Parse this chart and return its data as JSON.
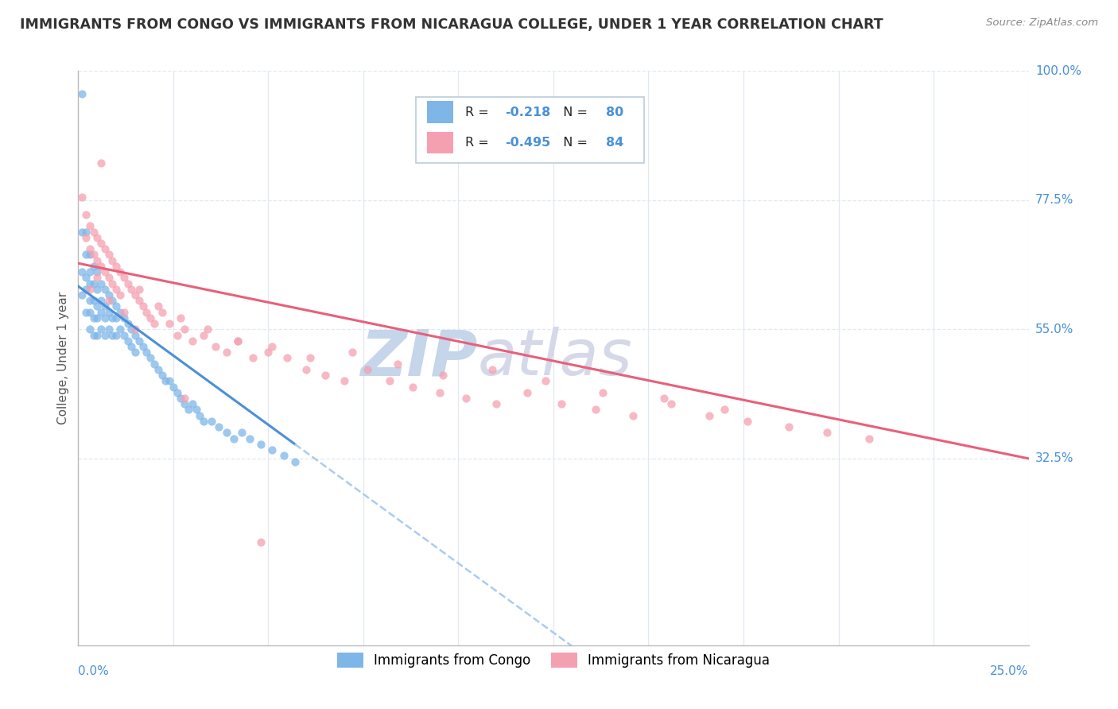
{
  "title": "IMMIGRANTS FROM CONGO VS IMMIGRANTS FROM NICARAGUA COLLEGE, UNDER 1 YEAR CORRELATION CHART",
  "source": "Source: ZipAtlas.com",
  "xmin": 0.0,
  "xmax": 0.25,
  "ymin": 0.0,
  "ymax": 1.0,
  "congo_color": "#7EB6E8",
  "nicaragua_color": "#F5A0B0",
  "trendline_congo_color": "#4A90D9",
  "trendline_nicaragua_color": "#E8607A",
  "trendline_extension_color": "#AACCEE",
  "legend_congo_r": "-0.218",
  "legend_congo_n": "80",
  "legend_nicaragua_r": "-0.495",
  "legend_nicaragua_n": "84",
  "legend_label_congo": "Immigrants from Congo",
  "legend_label_nicaragua": "Immigrants from Nicaragua",
  "watermark_zip": "ZIP",
  "watermark_atlas": "atlas",
  "watermark_color_zip": "#C8D8EE",
  "watermark_color_atlas": "#C8D8EE",
  "background_color": "#FFFFFF",
  "grid_color": "#E0E8F4",
  "right_axis_color": "#4A90D9",
  "title_color": "#333333",
  "r_value_color": "#4A90D9",
  "congo_x": [
    0.001,
    0.001,
    0.001,
    0.001,
    0.002,
    0.002,
    0.002,
    0.002,
    0.002,
    0.003,
    0.003,
    0.003,
    0.003,
    0.003,
    0.003,
    0.004,
    0.004,
    0.004,
    0.004,
    0.004,
    0.005,
    0.005,
    0.005,
    0.005,
    0.005,
    0.006,
    0.006,
    0.006,
    0.006,
    0.007,
    0.007,
    0.007,
    0.007,
    0.008,
    0.008,
    0.008,
    0.009,
    0.009,
    0.009,
    0.01,
    0.01,
    0.01,
    0.011,
    0.011,
    0.012,
    0.012,
    0.013,
    0.013,
    0.014,
    0.014,
    0.015,
    0.015,
    0.016,
    0.017,
    0.018,
    0.019,
    0.02,
    0.021,
    0.022,
    0.023,
    0.024,
    0.025,
    0.026,
    0.027,
    0.028,
    0.029,
    0.03,
    0.031,
    0.032,
    0.033,
    0.035,
    0.037,
    0.039,
    0.041,
    0.043,
    0.045,
    0.048,
    0.051,
    0.054,
    0.057
  ],
  "congo_y": [
    0.96,
    0.72,
    0.65,
    0.61,
    0.72,
    0.68,
    0.64,
    0.62,
    0.58,
    0.68,
    0.65,
    0.63,
    0.6,
    0.58,
    0.55,
    0.66,
    0.63,
    0.6,
    0.57,
    0.54,
    0.65,
    0.62,
    0.59,
    0.57,
    0.54,
    0.63,
    0.6,
    0.58,
    0.55,
    0.62,
    0.59,
    0.57,
    0.54,
    0.61,
    0.58,
    0.55,
    0.6,
    0.57,
    0.54,
    0.59,
    0.57,
    0.54,
    0.58,
    0.55,
    0.57,
    0.54,
    0.56,
    0.53,
    0.55,
    0.52,
    0.54,
    0.51,
    0.53,
    0.52,
    0.51,
    0.5,
    0.49,
    0.48,
    0.47,
    0.46,
    0.46,
    0.45,
    0.44,
    0.43,
    0.42,
    0.41,
    0.42,
    0.41,
    0.4,
    0.39,
    0.39,
    0.38,
    0.37,
    0.36,
    0.37,
    0.36,
    0.35,
    0.34,
    0.33,
    0.32
  ],
  "nicaragua_x": [
    0.001,
    0.002,
    0.002,
    0.003,
    0.003,
    0.004,
    0.004,
    0.005,
    0.005,
    0.006,
    0.006,
    0.007,
    0.007,
    0.008,
    0.008,
    0.009,
    0.009,
    0.01,
    0.01,
    0.011,
    0.011,
    0.012,
    0.013,
    0.014,
    0.015,
    0.016,
    0.017,
    0.018,
    0.019,
    0.02,
    0.022,
    0.024,
    0.026,
    0.028,
    0.03,
    0.033,
    0.036,
    0.039,
    0.042,
    0.046,
    0.05,
    0.055,
    0.06,
    0.065,
    0.07,
    0.076,
    0.082,
    0.088,
    0.095,
    0.102,
    0.11,
    0.118,
    0.127,
    0.136,
    0.146,
    0.156,
    0.166,
    0.176,
    0.187,
    0.197,
    0.208,
    0.003,
    0.005,
    0.008,
    0.012,
    0.016,
    0.021,
    0.027,
    0.034,
    0.042,
    0.051,
    0.061,
    0.072,
    0.084,
    0.096,
    0.109,
    0.123,
    0.138,
    0.154,
    0.17,
    0.006,
    0.015,
    0.028,
    0.048
  ],
  "nicaragua_y": [
    0.78,
    0.75,
    0.71,
    0.73,
    0.69,
    0.72,
    0.68,
    0.71,
    0.67,
    0.7,
    0.66,
    0.69,
    0.65,
    0.68,
    0.64,
    0.67,
    0.63,
    0.66,
    0.62,
    0.65,
    0.61,
    0.64,
    0.63,
    0.62,
    0.61,
    0.6,
    0.59,
    0.58,
    0.57,
    0.56,
    0.58,
    0.56,
    0.54,
    0.55,
    0.53,
    0.54,
    0.52,
    0.51,
    0.53,
    0.5,
    0.51,
    0.5,
    0.48,
    0.47,
    0.46,
    0.48,
    0.46,
    0.45,
    0.44,
    0.43,
    0.42,
    0.44,
    0.42,
    0.41,
    0.4,
    0.42,
    0.4,
    0.39,
    0.38,
    0.37,
    0.36,
    0.62,
    0.64,
    0.6,
    0.58,
    0.62,
    0.59,
    0.57,
    0.55,
    0.53,
    0.52,
    0.5,
    0.51,
    0.49,
    0.47,
    0.48,
    0.46,
    0.44,
    0.43,
    0.41,
    0.84,
    0.55,
    0.43,
    0.18
  ]
}
